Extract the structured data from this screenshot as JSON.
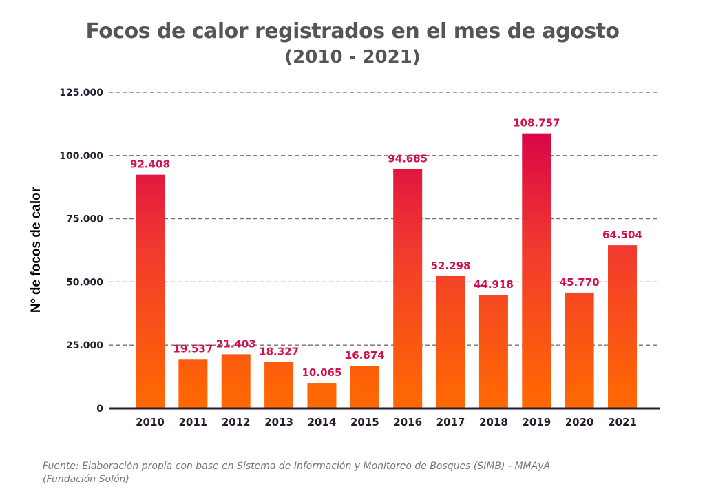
{
  "chart_data": {
    "type": "bar",
    "title": "Focos de calor registrados en el mes de agosto",
    "subtitle": "(2010 - 2021)",
    "xlabel": "",
    "ylabel": "Nº de focos de calor",
    "categories": [
      "2010",
      "2011",
      "2012",
      "2013",
      "2014",
      "2015",
      "2016",
      "2017",
      "2018",
      "2019",
      "2020",
      "2021"
    ],
    "values": [
      92408,
      19537,
      21403,
      18327,
      10065,
      16874,
      94685,
      52298,
      44918,
      108757,
      45770,
      64504
    ],
    "value_labels": [
      "92.408",
      "19.537",
      "21.403",
      "18.327",
      "10.065",
      "16.874",
      "94.685",
      "52.298",
      "44.918",
      "108.757",
      "45.770",
      "64.504"
    ],
    "ylim": [
      0,
      125000
    ],
    "yticks": [
      0,
      25000,
      50000,
      75000,
      100000,
      125000
    ],
    "ytick_labels": [
      "0",
      "25.000",
      "50.000",
      "75.000",
      "100.000",
      "125.000"
    ],
    "grid": true,
    "grid_style": "dashed horizontal",
    "legend": "none",
    "colors": {
      "bar_top": "#d6004a",
      "bar_mid": "#f23a2e",
      "bar_bottom": "#ff6a00",
      "value_label": "#d1104f",
      "tick_label": "#2a1a2e",
      "grid": "#7a6a78",
      "axis": "#2a1a2e"
    }
  },
  "source": {
    "line1": "Fuente: Elaboración propia con base en Sistema de Información y Monitoreo de Bosques (SIMB) - MMAyA",
    "line2": "(Fundación Solón)"
  }
}
